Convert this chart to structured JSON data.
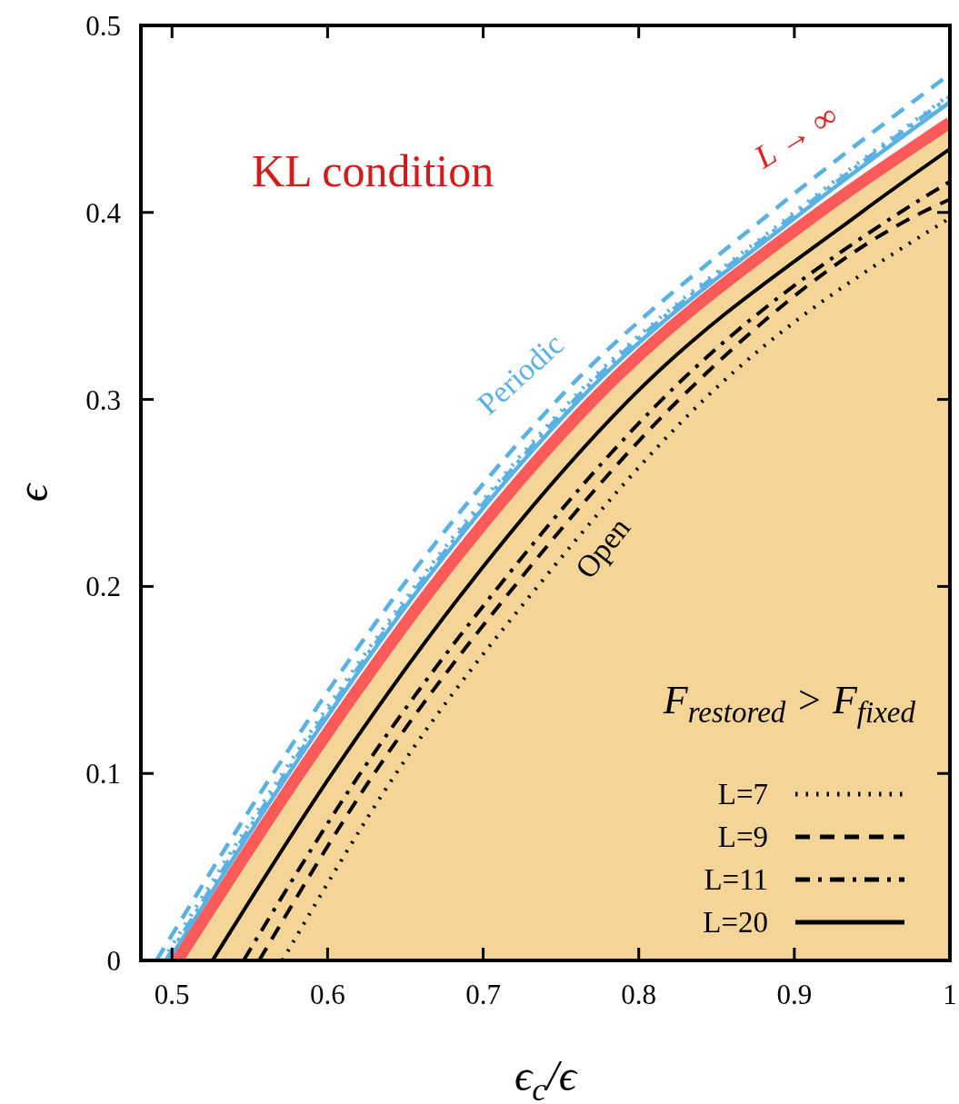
{
  "chart_data": {
    "type": "line",
    "xlabel": "ϵ$_{c}$/ϵ",
    "ylabel": "ϵ",
    "xlim": [
      0.48,
      1
    ],
    "ylim": [
      0,
      0.5
    ],
    "xticks": [
      0.5,
      0.6,
      0.7,
      0.8,
      0.9,
      1
    ],
    "yticks": [
      0,
      0.1,
      0.2,
      0.3,
      0.4,
      0.5
    ],
    "legend": "bottom right",
    "series": [
      {
        "color": "#5ab1e3",
        "line_style": "dashed",
        "x": [
          0.49,
          0.565,
          0.648,
          0.748,
          0.885,
          1.0
        ],
        "values": [
          0,
          0.1,
          0.2,
          0.3,
          0.4,
          0.474
        ]
      },
      {
        "color": "#5ab1e3",
        "line_style": "dotted",
        "x": [
          0.494,
          0.571,
          0.656,
          0.757,
          0.9,
          1.0
        ],
        "values": [
          0,
          0.1,
          0.2,
          0.3,
          0.4,
          0.463
        ]
      },
      {
        "color": "#5ab1e3",
        "line_style": "dashdot",
        "x": [
          0.496,
          0.573,
          0.658,
          0.759,
          0.902,
          1.0
        ],
        "values": [
          0,
          0.1,
          0.2,
          0.3,
          0.4,
          0.462
        ]
      },
      {
        "color": "#5ab1e3",
        "line_style": "solid",
        "x": [
          0.498,
          0.575,
          0.66,
          0.762,
          0.905,
          1.0
        ],
        "values": [
          0,
          0.1,
          0.2,
          0.3,
          0.4,
          0.459
        ]
      },
      {
        "type": "area",
        "color": "#fb5a5a",
        "line_style": "solid",
        "x": [
          0.5035,
          0.582,
          0.668,
          0.771,
          0.916,
          1.0
        ],
        "values": [
          0,
          0.1,
          0.2,
          0.3,
          0.4,
          0.448
        ]
      },
      {
        "name": "L=7",
        "color": "#000000",
        "line_style": "dotted",
        "x": [
          0.571,
          0.644,
          0.735,
          0.842,
          1.0
        ],
        "values": [
          0,
          0.1,
          0.2,
          0.3,
          0.397
        ]
      },
      {
        "name": "L=9",
        "color": "#000000",
        "line_style": "dashed",
        "x": [
          0.556,
          0.63,
          0.72,
          0.826,
          0.982,
          1.0
        ],
        "values": [
          0,
          0.1,
          0.2,
          0.3,
          0.4,
          0.407
        ]
      },
      {
        "name": "L=11",
        "color": "#000000",
        "line_style": "dashdot",
        "x": [
          0.546,
          0.621,
          0.71,
          0.815,
          0.968,
          1.0
        ],
        "values": [
          0,
          0.1,
          0.2,
          0.3,
          0.4,
          0.4165
        ]
      },
      {
        "name": "L=20",
        "color": "#000000",
        "line_style": "solid",
        "x": [
          0.526,
          0.603,
          0.69,
          0.794,
          0.943,
          1.0
        ],
        "values": [
          0,
          0.1,
          0.2,
          0.3,
          0.4,
          0.434
        ]
      }
    ],
    "annotations": [
      "KL condition",
      "Periodic",
      "Open",
      "L → ∞",
      "F$_{restored}$ > F$_{fixed}$"
    ]
  }
}
